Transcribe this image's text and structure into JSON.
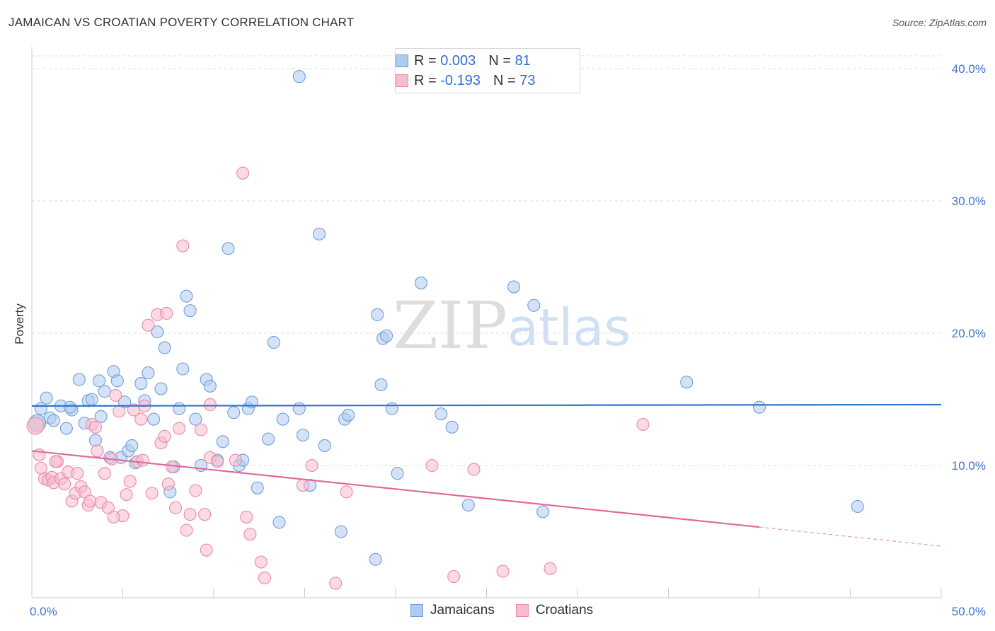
{
  "header": {
    "title": "JAMAICAN VS CROATIAN POVERTY CORRELATION CHART",
    "source": "Source: ZipAtlas.com"
  },
  "watermark": {
    "zip": "ZIP",
    "atlas": "atlas"
  },
  "legend": {
    "rows": [
      {
        "r_label": "R = ",
        "r_value": "0.003",
        "n_label": "N = ",
        "n_value": "81"
      },
      {
        "r_label": "R = ",
        "r_value": "-0.193",
        "n_label": "N = ",
        "n_value": "73"
      }
    ]
  },
  "bottom_legend": {
    "jamaicans": "Jamaicans",
    "croatians": "Croatians"
  },
  "colors": {
    "jamaican_fill": "#aecbf0",
    "jamaican_stroke": "#6f9fd8",
    "jamaican_line": "#2f74cc",
    "croatian_fill": "#f7bccd",
    "croatian_stroke": "#e98aa8",
    "croatian_line": "#e06a97",
    "tick_text": "#3f74c9"
  },
  "chart_data": {
    "type": "scatter",
    "title": "JAMAICAN VS CROATIAN POVERTY CORRELATION CHART",
    "xlabel": "",
    "ylabel": "Poverty",
    "xlim": [
      0,
      50
    ],
    "ylim": [
      0,
      40
    ],
    "x_tick_labels": [
      "0.0%",
      "50.0%"
    ],
    "y_ticks": [
      {
        "value": 10,
        "label": "10.0%"
      },
      {
        "value": 20,
        "label": "20.0%"
      },
      {
        "value": 30,
        "label": "30.0%"
      },
      {
        "value": 40,
        "label": "40.0%"
      }
    ],
    "grid": "horizontal dashed",
    "legend_position": "top-center",
    "series": [
      {
        "name": "Jamaicans",
        "r": 0.003,
        "n": 81,
        "trend": {
          "x0": 0,
          "y0": 14.5,
          "x1": 50,
          "y1": 14.6,
          "solid_until": 50
        },
        "points": [
          [
            0.3,
            13.2
          ],
          [
            0.5,
            14.3
          ],
          [
            0.8,
            15.1
          ],
          [
            1.0,
            13.6
          ],
          [
            1.2,
            13.4
          ],
          [
            1.6,
            14.5
          ],
          [
            1.9,
            12.8
          ],
          [
            2.2,
            14.2
          ],
          [
            2.6,
            16.5
          ],
          [
            2.9,
            13.2
          ],
          [
            3.1,
            14.9
          ],
          [
            3.3,
            15.0
          ],
          [
            3.5,
            11.9
          ],
          [
            3.8,
            13.7
          ],
          [
            4.0,
            15.6
          ],
          [
            4.3,
            10.6
          ],
          [
            4.5,
            17.1
          ],
          [
            4.7,
            16.4
          ],
          [
            4.9,
            10.6
          ],
          [
            5.1,
            14.8
          ],
          [
            5.3,
            11.1
          ],
          [
            5.5,
            11.5
          ],
          [
            5.7,
            10.2
          ],
          [
            6.0,
            16.2
          ],
          [
            6.2,
            14.9
          ],
          [
            6.4,
            17.0
          ],
          [
            6.7,
            13.5
          ],
          [
            6.9,
            20.1
          ],
          [
            7.1,
            15.8
          ],
          [
            7.3,
            18.9
          ],
          [
            7.6,
            8.0
          ],
          [
            7.8,
            9.9
          ],
          [
            8.1,
            14.3
          ],
          [
            8.3,
            17.3
          ],
          [
            8.5,
            22.8
          ],
          [
            8.7,
            21.7
          ],
          [
            9.0,
            13.5
          ],
          [
            9.3,
            10.0
          ],
          [
            9.6,
            16.5
          ],
          [
            9.8,
            16.0
          ],
          [
            10.2,
            10.4
          ],
          [
            10.5,
            11.8
          ],
          [
            10.8,
            26.4
          ],
          [
            11.1,
            14.0
          ],
          [
            11.4,
            10.0
          ],
          [
            11.6,
            10.4
          ],
          [
            11.9,
            14.3
          ],
          [
            12.1,
            14.8
          ],
          [
            12.4,
            8.3
          ],
          [
            13.0,
            12.0
          ],
          [
            13.3,
            19.3
          ],
          [
            13.6,
            5.7
          ],
          [
            13.8,
            13.5
          ],
          [
            14.7,
            14.3
          ],
          [
            14.9,
            12.3
          ],
          [
            15.3,
            8.5
          ],
          [
            14.7,
            39.4
          ],
          [
            15.8,
            27.5
          ],
          [
            16.1,
            11.5
          ],
          [
            17.2,
            13.5
          ],
          [
            17.4,
            13.8
          ],
          [
            17.0,
            5.0
          ],
          [
            18.9,
            2.9
          ],
          [
            19.0,
            21.4
          ],
          [
            19.3,
            19.6
          ],
          [
            19.5,
            19.8
          ],
          [
            19.2,
            16.1
          ],
          [
            19.8,
            14.3
          ],
          [
            20.1,
            9.4
          ],
          [
            21.4,
            23.8
          ],
          [
            22.5,
            13.9
          ],
          [
            23.1,
            12.9
          ],
          [
            24.0,
            7.0
          ],
          [
            26.5,
            23.5
          ],
          [
            27.6,
            22.1
          ],
          [
            28.1,
            6.5
          ],
          [
            36.0,
            16.3
          ],
          [
            45.4,
            6.9
          ],
          [
            40.0,
            14.4
          ],
          [
            3.7,
            16.4
          ],
          [
            2.1,
            14.4
          ]
        ]
      },
      {
        "name": "Croatians",
        "r": -0.193,
        "n": 73,
        "trend": {
          "x0": 0,
          "y0": 11.1,
          "x1": 50,
          "y1": 3.9,
          "solid_until": 40
        },
        "points": [
          [
            0.2,
            13.0
          ],
          [
            0.4,
            10.8
          ],
          [
            0.5,
            9.8
          ],
          [
            0.7,
            9.0
          ],
          [
            0.9,
            8.9
          ],
          [
            1.1,
            9.1
          ],
          [
            1.2,
            8.7
          ],
          [
            1.4,
            10.3
          ],
          [
            1.6,
            9.0
          ],
          [
            1.8,
            8.6
          ],
          [
            2.0,
            9.5
          ],
          [
            2.2,
            7.3
          ],
          [
            2.4,
            7.9
          ],
          [
            2.5,
            9.4
          ],
          [
            2.7,
            8.4
          ],
          [
            2.9,
            8.0
          ],
          [
            3.1,
            7.0
          ],
          [
            3.3,
            13.1
          ],
          [
            3.5,
            12.9
          ],
          [
            3.6,
            11.1
          ],
          [
            3.8,
            7.2
          ],
          [
            4.0,
            9.4
          ],
          [
            4.2,
            6.8
          ],
          [
            4.4,
            10.5
          ],
          [
            4.6,
            15.3
          ],
          [
            4.8,
            14.1
          ],
          [
            5.0,
            6.2
          ],
          [
            5.2,
            7.8
          ],
          [
            5.4,
            8.8
          ],
          [
            5.6,
            14.2
          ],
          [
            5.8,
            10.3
          ],
          [
            6.0,
            13.5
          ],
          [
            6.2,
            14.5
          ],
          [
            6.4,
            20.6
          ],
          [
            6.6,
            7.9
          ],
          [
            6.9,
            21.4
          ],
          [
            7.1,
            11.7
          ],
          [
            7.3,
            12.2
          ],
          [
            7.5,
            8.6
          ],
          [
            7.7,
            9.9
          ],
          [
            7.9,
            6.8
          ],
          [
            8.1,
            12.8
          ],
          [
            8.3,
            26.6
          ],
          [
            8.5,
            5.1
          ],
          [
            8.7,
            6.3
          ],
          [
            9.0,
            8.1
          ],
          [
            9.3,
            12.7
          ],
          [
            9.5,
            6.3
          ],
          [
            9.6,
            3.6
          ],
          [
            9.8,
            10.6
          ],
          [
            10.2,
            10.3
          ],
          [
            11.2,
            10.4
          ],
          [
            11.6,
            32.1
          ],
          [
            11.8,
            6.1
          ],
          [
            12.0,
            4.8
          ],
          [
            12.6,
            2.7
          ],
          [
            12.8,
            1.5
          ],
          [
            14.9,
            8.5
          ],
          [
            15.4,
            10.0
          ],
          [
            16.7,
            1.1
          ],
          [
            17.3,
            8.0
          ],
          [
            22.0,
            10.0
          ],
          [
            23.2,
            1.6
          ],
          [
            24.3,
            9.7
          ],
          [
            25.9,
            2.0
          ],
          [
            28.5,
            2.2
          ],
          [
            33.6,
            13.1
          ],
          [
            7.4,
            21.5
          ],
          [
            1.3,
            10.3
          ],
          [
            3.2,
            7.3
          ],
          [
            4.5,
            6.1
          ],
          [
            6.1,
            10.4
          ],
          [
            9.8,
            14.6
          ]
        ]
      }
    ]
  }
}
